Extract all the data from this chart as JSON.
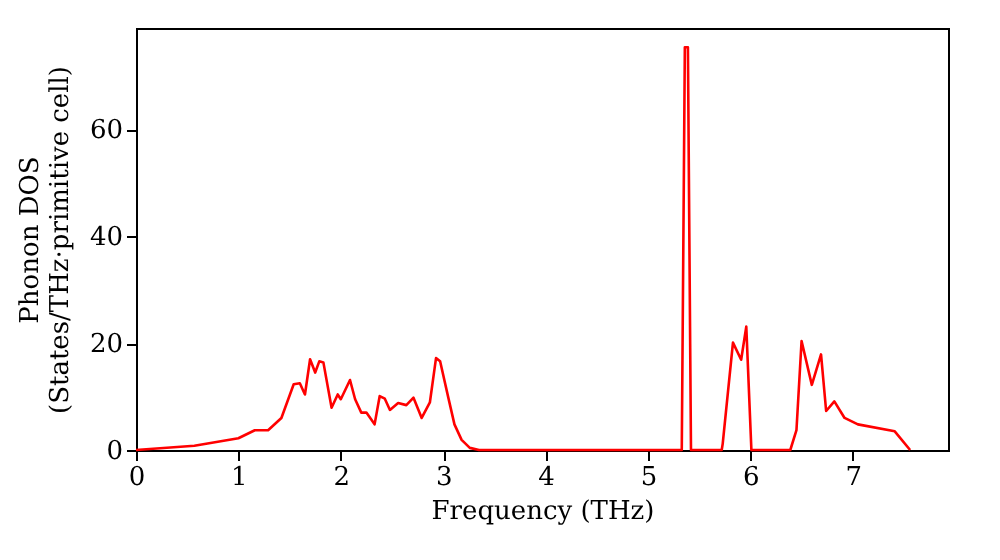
{
  "chart_data": {
    "type": "line",
    "xlabel": "Frequency (THz)",
    "ylabel": "Phonon DOS\n(States/THz·primitive cell)",
    "xlim": [
      0,
      7.93
    ],
    "ylim": [
      0,
      79
    ],
    "xticks": [
      0,
      1,
      2,
      3,
      4,
      5,
      6,
      7
    ],
    "yticks": [
      0,
      20,
      40,
      60
    ],
    "grid": false,
    "marker": "none",
    "line_style": "solid",
    "x": [
      0,
      0.57,
      1.0,
      1.16,
      1.29,
      1.42,
      1.54,
      1.6,
      1.65,
      1.7,
      1.75,
      1.79,
      1.83,
      1.91,
      1.97,
      2.0,
      2.09,
      2.14,
      2.2,
      2.25,
      2.33,
      2.38,
      2.43,
      2.48,
      2.56,
      2.64,
      2.71,
      2.79,
      2.87,
      2.93,
      2.97,
      3.05,
      3.11,
      3.18,
      3.26,
      3.35,
      5.33,
      5.36,
      5.39,
      5.42,
      5.72,
      5.73,
      5.83,
      5.91,
      5.96,
      6.01,
      6.39,
      6.45,
      6.5,
      6.6,
      6.69,
      6.74,
      6.82,
      6.92,
      7.05,
      7.41,
      7.56
    ],
    "series": [
      {
        "color": "#ff0000",
        "values": [
          0,
          0.8,
          2.2,
          3.7,
          3.7,
          6,
          12.3,
          12.5,
          10.4,
          17,
          14.5,
          16.6,
          16.4,
          7.9,
          10.4,
          9.5,
          13.1,
          9.5,
          7,
          7,
          4.8,
          10.1,
          9.6,
          7.5,
          8.8,
          8.4,
          9.8,
          6,
          8.9,
          17.2,
          16.6,
          9.8,
          4.8,
          1.9,
          0.4,
          0,
          0,
          75.4,
          75.4,
          0,
          0,
          1.2,
          20.1,
          16.9,
          23.1,
          0,
          0,
          3.7,
          20.4,
          12.2,
          17.9,
          7.3,
          9.1,
          6,
          4.8,
          3.5,
          0
        ]
      }
    ]
  }
}
